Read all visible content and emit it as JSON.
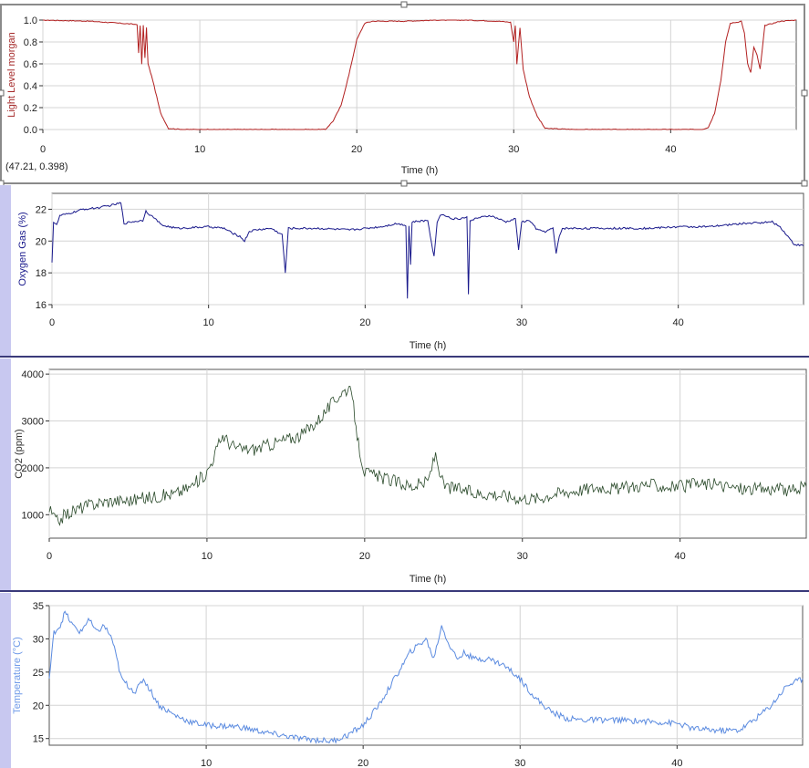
{
  "readout": {
    "text": "(47.21, 0.398)"
  },
  "chart_data": [
    {
      "type": "line",
      "title": "",
      "xlabel": "Time (h)",
      "ylabel": "Light Level morgan",
      "xlim": [
        0,
        48
      ],
      "ylim": [
        0,
        1
      ],
      "xticks": [
        0,
        10,
        20,
        30,
        40
      ],
      "yticks": [
        0.0,
        0.2,
        0.4,
        0.6,
        0.8,
        1.0
      ],
      "ytick_labels": [
        "0.0",
        "0.2",
        "0.4",
        "0.6",
        "0.8",
        "1.0"
      ],
      "color": "#b22020",
      "label_color": "#a52a2a",
      "grid": true,
      "series": [
        {
          "x": [
            0,
            3,
            5,
            6,
            6.1,
            6.2,
            6.3,
            6.4,
            6.5,
            6.6,
            6.7,
            7,
            7.5,
            8,
            9,
            12,
            15,
            18,
            18.5,
            19,
            19.5,
            20,
            20.5,
            21,
            23,
            25,
            27,
            29,
            29.8,
            30,
            30.1,
            30.2,
            30.4,
            30.6,
            31,
            31.5,
            32,
            34,
            37,
            40,
            42,
            42.4,
            42.8,
            43.2,
            43.5,
            43.8,
            44.2,
            44.5,
            44.7,
            44.9,
            45.1,
            45.3,
            45.5,
            45.7,
            46,
            47,
            48
          ],
          "y": [
            1.0,
            0.99,
            0.97,
            0.96,
            0.7,
            0.95,
            0.6,
            0.95,
            0.65,
            0.93,
            0.6,
            0.45,
            0.15,
            0.01,
            0.0,
            0.0,
            0.0,
            0.0,
            0.08,
            0.22,
            0.5,
            0.82,
            0.97,
            0.99,
            0.99,
            1.0,
            1.0,
            0.99,
            0.98,
            0.8,
            0.95,
            0.6,
            0.93,
            0.55,
            0.3,
            0.12,
            0.01,
            0.0,
            0.0,
            0.0,
            0.0,
            0.02,
            0.15,
            0.45,
            0.8,
            0.97,
            0.98,
            0.99,
            0.88,
            0.6,
            0.52,
            0.75,
            0.68,
            0.55,
            0.95,
            0.99,
            1.0
          ]
        }
      ]
    },
    {
      "type": "line",
      "title": "",
      "xlabel": "Time (h)",
      "ylabel": "Oxygen Gas (%)",
      "xlim": [
        0,
        48
      ],
      "ylim": [
        16,
        23
      ],
      "xticks": [
        0,
        10,
        20,
        30,
        40
      ],
      "yticks": [
        16,
        18,
        20,
        22
      ],
      "ytick_labels": [
        "16",
        "18",
        "20",
        "22"
      ],
      "color": "#1a1a8c",
      "label_color": "#1a1a8c",
      "grid": true,
      "series": [
        {
          "x": [
            0,
            0.1,
            0.3,
            0.5,
            1,
            2,
            3,
            4,
            4.4,
            4.6,
            5,
            5.8,
            6,
            6.3,
            6.5,
            7,
            8,
            10,
            11,
            11.5,
            12,
            12.3,
            12.6,
            13,
            14,
            14.7,
            14.9,
            15.1,
            15.5,
            17,
            19,
            20,
            21,
            22,
            22.6,
            22.7,
            22.8,
            22.9,
            23,
            24,
            24.4,
            24.6,
            24.8,
            25,
            25.5,
            26,
            26.5,
            26.6,
            26.7,
            27,
            28,
            29,
            29.6,
            29.8,
            30,
            30.5,
            31,
            31.5,
            32,
            32.2,
            32.4,
            32.6,
            33,
            35,
            38,
            40,
            42,
            44,
            46,
            46.5,
            47,
            47.4,
            48
          ],
          "y": [
            18.7,
            21.2,
            21.0,
            21.6,
            21.7,
            22.0,
            22.1,
            22.3,
            22.4,
            21.1,
            21.2,
            21.3,
            21.9,
            21.6,
            21.5,
            21.0,
            20.8,
            20.9,
            20.8,
            20.5,
            20.3,
            20.0,
            20.6,
            20.7,
            20.8,
            20.4,
            18.0,
            20.8,
            20.8,
            20.8,
            20.7,
            20.8,
            20.9,
            21.1,
            21.0,
            16.4,
            21.0,
            18.5,
            21.2,
            21.3,
            19.0,
            21.2,
            21.6,
            21.7,
            21.4,
            21.4,
            21.5,
            16.7,
            21.3,
            21.4,
            21.6,
            21.2,
            21.4,
            19.5,
            21.2,
            21.3,
            20.7,
            20.6,
            20.8,
            19.2,
            20.3,
            20.8,
            20.8,
            20.8,
            20.8,
            20.9,
            20.9,
            21.1,
            21.2,
            20.9,
            20.3,
            19.8,
            19.7
          ]
        }
      ]
    },
    {
      "type": "line",
      "title": "",
      "xlabel": "Time (h)",
      "ylabel": "CO2 (ppm)",
      "xlim": [
        0,
        48
      ],
      "ylim": [
        500,
        4100
      ],
      "xticks": [
        0,
        10,
        20,
        30,
        40
      ],
      "yticks": [
        1000,
        2000,
        3000,
        4000
      ],
      "ytick_labels": [
        "1000",
        "2000",
        "3000",
        "4000"
      ],
      "color": "#2a4a2a",
      "label_color": "#333333",
      "grid": true,
      "series": [
        {
          "x": [
            0,
            0.5,
            1,
            2,
            3,
            4,
            5,
            6,
            7,
            8,
            9,
            10,
            10.5,
            11,
            11.5,
            12,
            13,
            14,
            15,
            16,
            17,
            17.5,
            18,
            18.5,
            19,
            19.3,
            19.6,
            20,
            21,
            22,
            23,
            24,
            24.5,
            25,
            26,
            27,
            28,
            29,
            30,
            31,
            32,
            33,
            34,
            35,
            36,
            37,
            38,
            39,
            40,
            41,
            42,
            43,
            44,
            45,
            46,
            47,
            48
          ],
          "y": [
            1100,
            850,
            1000,
            1150,
            1250,
            1300,
            1300,
            1350,
            1400,
            1450,
            1600,
            1900,
            2300,
            2700,
            2500,
            2400,
            2400,
            2500,
            2600,
            2700,
            3000,
            3200,
            3400,
            3600,
            3700,
            3300,
            2500,
            1900,
            1800,
            1700,
            1600,
            1700,
            2300,
            1600,
            1550,
            1450,
            1450,
            1400,
            1350,
            1350,
            1450,
            1500,
            1550,
            1600,
            1550,
            1600,
            1650,
            1600,
            1600,
            1650,
            1650,
            1600,
            1550,
            1550,
            1550,
            1500,
            1600
          ]
        }
      ]
    },
    {
      "type": "line",
      "title": "",
      "xlabel": "",
      "ylabel": "Temperature (°C)",
      "xlim": [
        0,
        48
      ],
      "ylim": [
        14,
        35
      ],
      "xticks": [
        10,
        20,
        30,
        40
      ],
      "yticks": [
        15,
        20,
        25,
        30,
        35
      ],
      "ytick_labels": [
        "15",
        "20",
        "25",
        "30",
        "35"
      ],
      "color": "#5b8be0",
      "label_color": "#6f9ae8",
      "grid": true,
      "series": [
        {
          "x": [
            0,
            0.3,
            0.7,
            1,
            1.5,
            2,
            2.5,
            3,
            3.5,
            4,
            4.3,
            4.6,
            5,
            5.5,
            6,
            6.5,
            7,
            8,
            9,
            10,
            12,
            14,
            16,
            18,
            19,
            20,
            21,
            22,
            23,
            24,
            24.5,
            25,
            25.5,
            26,
            26.5,
            27,
            28,
            29,
            30,
            31,
            32,
            33,
            34,
            36,
            38,
            40,
            41,
            42,
            43,
            44,
            45,
            46,
            47,
            48
          ],
          "y": [
            24,
            31,
            32,
            34,
            32,
            31,
            33,
            31,
            32,
            30,
            27,
            24,
            23,
            22,
            24,
            22,
            20,
            18.5,
            17.5,
            17.0,
            16.8,
            15.8,
            15.0,
            14.6,
            15.5,
            17,
            20,
            24,
            28,
            30,
            27,
            32,
            29,
            27,
            28,
            27,
            27,
            26,
            24,
            21,
            19,
            18,
            17.8,
            17.8,
            17.6,
            17.3,
            16.5,
            16.3,
            16.2,
            16.3,
            18,
            20,
            23,
            24
          ]
        }
      ]
    }
  ]
}
